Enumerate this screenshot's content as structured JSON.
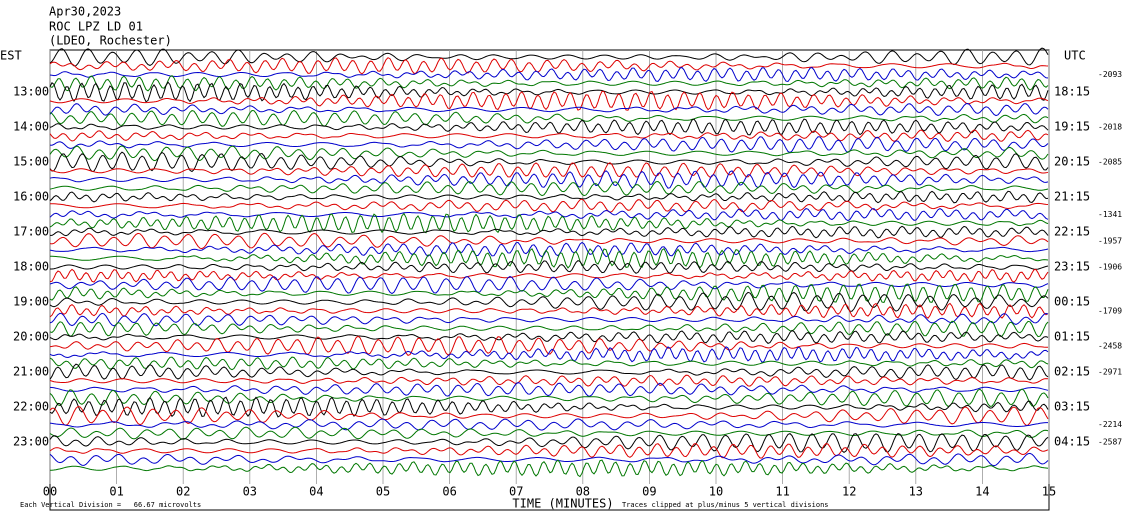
{
  "header": {
    "date": "Apr30,2023",
    "station": "ROC LPZ LD 01",
    "network": "(LDEO, Rochester)"
  },
  "left_axis": {
    "title": "EST",
    "labels": [
      "13:00",
      "14:00",
      "15:00",
      "16:00",
      "17:00",
      "18:00",
      "19:00",
      "20:00",
      "21:00",
      "22:00",
      "23:00"
    ]
  },
  "right_axis": {
    "title": "UTC",
    "labels": [
      "18:15",
      "19:15",
      "20:15",
      "21:15",
      "22:15",
      "23:15",
      "00:15",
      "01:15",
      "02:15",
      "03:15",
      "04:15"
    ]
  },
  "trace_offsets": [
    "-2093",
    "-2018",
    "-2085",
    "-1341",
    "-1957",
    "-1906",
    "-1709",
    "-2458",
    "-2971",
    "-2214",
    "-2587"
  ],
  "x_axis": {
    "title": "TIME (MINUTES)",
    "ticks": [
      "00",
      "01",
      "02",
      "03",
      "04",
      "05",
      "06",
      "07",
      "08",
      "09",
      "10",
      "11",
      "12",
      "13",
      "14",
      "15"
    ]
  },
  "footer": {
    "scale": "Each Vertical Division =   66.67 microvolts",
    "clip": "Traces clipped at plus/minus 5 vertical divisions"
  }
}
